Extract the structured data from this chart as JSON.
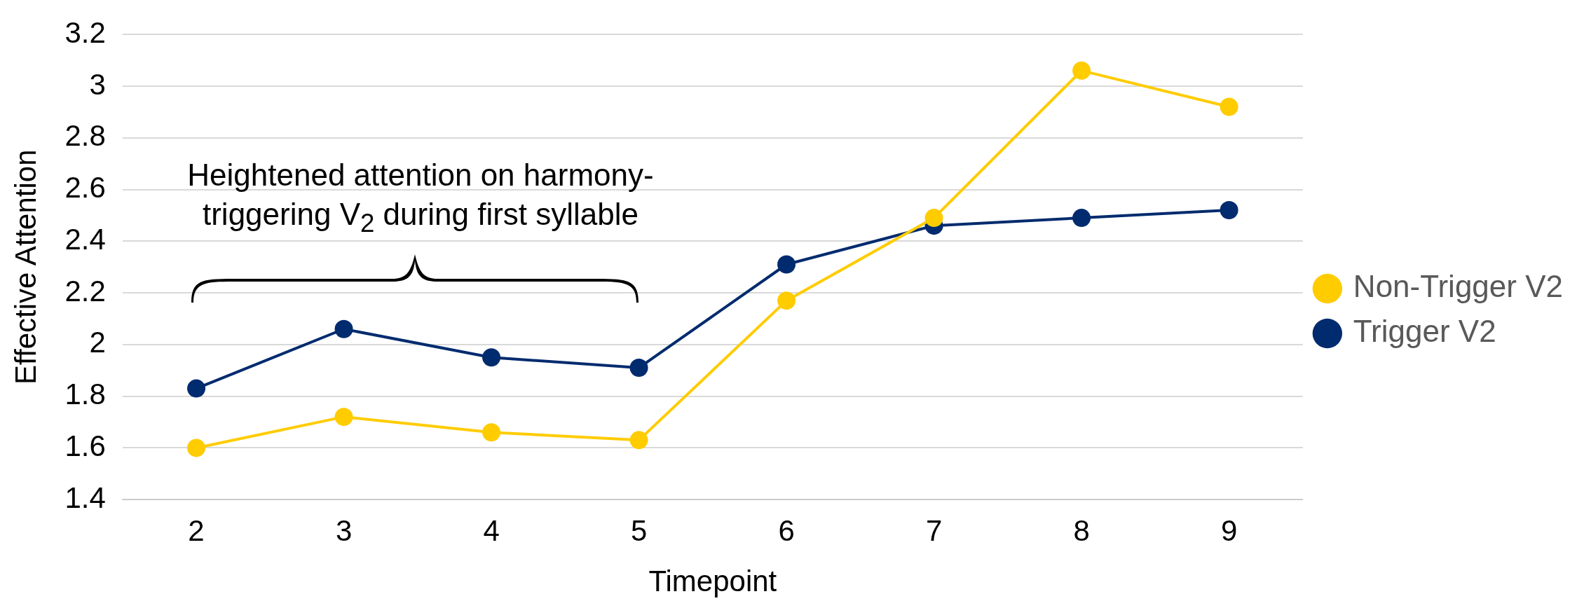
{
  "chart_data": {
    "type": "line",
    "xlabel": "Timepoint",
    "ylabel": "Effective Attention",
    "categories": [
      "2",
      "3",
      "4",
      "5",
      "6",
      "7",
      "8",
      "9"
    ],
    "series": [
      {
        "name": "Non-Trigger V2",
        "color": "#ffcc00",
        "values": [
          1.6,
          1.72,
          1.66,
          1.63,
          2.17,
          2.49,
          3.06,
          2.92
        ]
      },
      {
        "name": "Trigger V2",
        "color": "#002b6e",
        "values": [
          1.83,
          2.06,
          1.95,
          1.91,
          2.31,
          2.46,
          2.49,
          2.52
        ]
      }
    ],
    "ylim": [
      1.4,
      3.2
    ],
    "yticks": [
      1.4,
      1.6,
      1.8,
      2,
      2.2,
      2.4,
      2.6,
      2.8,
      3,
      3.2
    ],
    "grid": "y",
    "legend": "right",
    "marker": "circle",
    "line_style": "solid",
    "annotations": [
      "Heightened attention on harmony-triggering V$_{2}$ during first syllable"
    ]
  }
}
